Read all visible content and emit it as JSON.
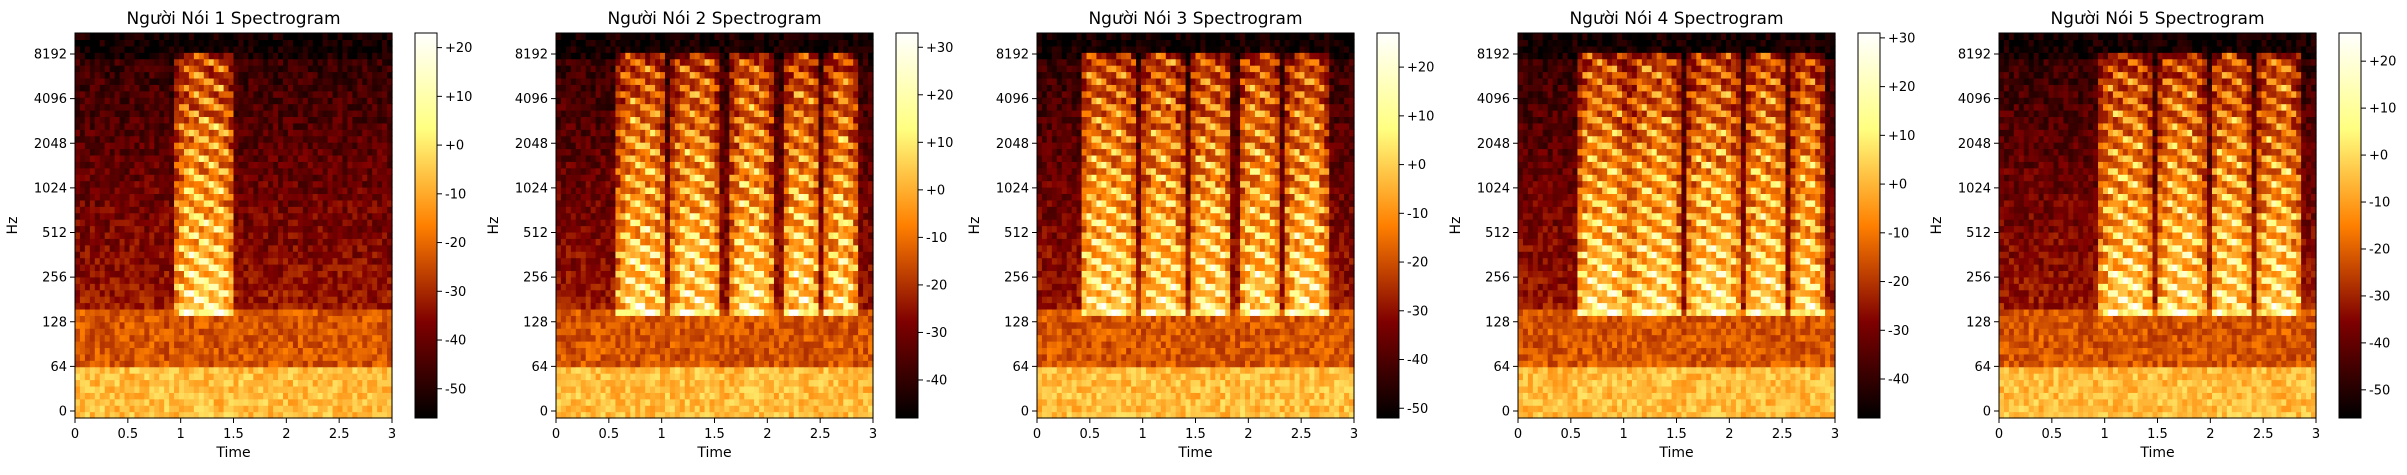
{
  "chart_data": [
    {
      "type": "heatmap",
      "title": "Người Nói 1 Spectrogram",
      "xlabel": "Time",
      "ylabel": "Hz",
      "xticks": [
        "0",
        "0.5",
        "1",
        "1.5",
        "2",
        "2.5",
        "3"
      ],
      "yticks": [
        "0",
        "64",
        "128",
        "256",
        "512",
        "1024",
        "2048",
        "4096",
        "8192"
      ],
      "colorbar_ticks": [
        "+20",
        "+10",
        "+0",
        "-10",
        "-20",
        "-30",
        "-40",
        "-50"
      ],
      "colorbar_range": [
        -56,
        23
      ],
      "colormap": "afmhot",
      "segments": [
        [
          0.95,
          1.5
        ]
      ]
    },
    {
      "type": "heatmap",
      "title": "Người Nói 2 Spectrogram",
      "xlabel": "Time",
      "ylabel": "Hz",
      "xticks": [
        "0",
        "0.5",
        "1",
        "1.5",
        "2",
        "2.5",
        "3"
      ],
      "yticks": [
        "0",
        "64",
        "128",
        "256",
        "512",
        "1024",
        "2048",
        "4096",
        "8192"
      ],
      "colorbar_ticks": [
        "+30",
        "+20",
        "+10",
        "+0",
        "-10",
        "-20",
        "-30",
        "-40"
      ],
      "colorbar_range": [
        -48,
        33
      ],
      "colormap": "afmhot",
      "segments": [
        [
          0.58,
          1.05
        ],
        [
          1.1,
          1.55
        ],
        [
          1.65,
          2.05
        ],
        [
          2.15,
          2.5
        ],
        [
          2.55,
          2.85
        ]
      ]
    },
    {
      "type": "heatmap",
      "title": "Người Nói 3 Spectrogram",
      "xlabel": "Time",
      "ylabel": "Hz",
      "xticks": [
        "0",
        "0.5",
        "1",
        "1.5",
        "2",
        "2.5",
        "3"
      ],
      "yticks": [
        "0",
        "64",
        "128",
        "256",
        "512",
        "1024",
        "2048",
        "4096",
        "8192"
      ],
      "colorbar_ticks": [
        "+20",
        "+10",
        "+0",
        "-10",
        "-20",
        "-30",
        "-40",
        "-50"
      ],
      "colorbar_range": [
        -52,
        27
      ],
      "colormap": "afmhot",
      "segments": [
        [
          0.4,
          0.95
        ],
        [
          1.0,
          1.4
        ],
        [
          1.45,
          1.85
        ],
        [
          1.9,
          2.3
        ],
        [
          2.35,
          2.75
        ]
      ]
    },
    {
      "type": "heatmap",
      "title": "Người Nói 4 Spectrogram",
      "xlabel": "Time",
      "ylabel": "Hz",
      "xticks": [
        "0",
        "0.5",
        "1",
        "1.5",
        "2",
        "2.5",
        "3"
      ],
      "yticks": [
        "0",
        "64",
        "128",
        "256",
        "512",
        "1024",
        "2048",
        "4096",
        "8192"
      ],
      "colorbar_ticks": [
        "+30",
        "+20",
        "+10",
        "+0",
        "-10",
        "-20",
        "-30",
        "-40"
      ],
      "colorbar_range": [
        -48,
        31
      ],
      "colormap": "afmhot",
      "segments": [
        [
          0.55,
          1.05
        ],
        [
          1.05,
          1.55
        ],
        [
          1.6,
          2.1
        ],
        [
          2.15,
          2.55
        ],
        [
          2.6,
          2.9
        ]
      ]
    },
    {
      "type": "heatmap",
      "title": "Người Nói 5 Spectrogram",
      "xlabel": "Time",
      "ylabel": "Hz",
      "xticks": [
        "0",
        "0.5",
        "1",
        "1.5",
        "2",
        "2.5",
        "3"
      ],
      "yticks": [
        "0",
        "64",
        "128",
        "256",
        "512",
        "1024",
        "2048",
        "4096",
        "8192"
      ],
      "colorbar_ticks": [
        "+20",
        "+10",
        "+0",
        "-10",
        "-20",
        "-30",
        "-40",
        "-50"
      ],
      "colorbar_range": [
        -56,
        26
      ],
      "colormap": "afmhot",
      "segments": [
        [
          0.95,
          1.45
        ],
        [
          1.5,
          1.95
        ],
        [
          2.0,
          2.4
        ],
        [
          2.45,
          2.85
        ]
      ]
    }
  ]
}
